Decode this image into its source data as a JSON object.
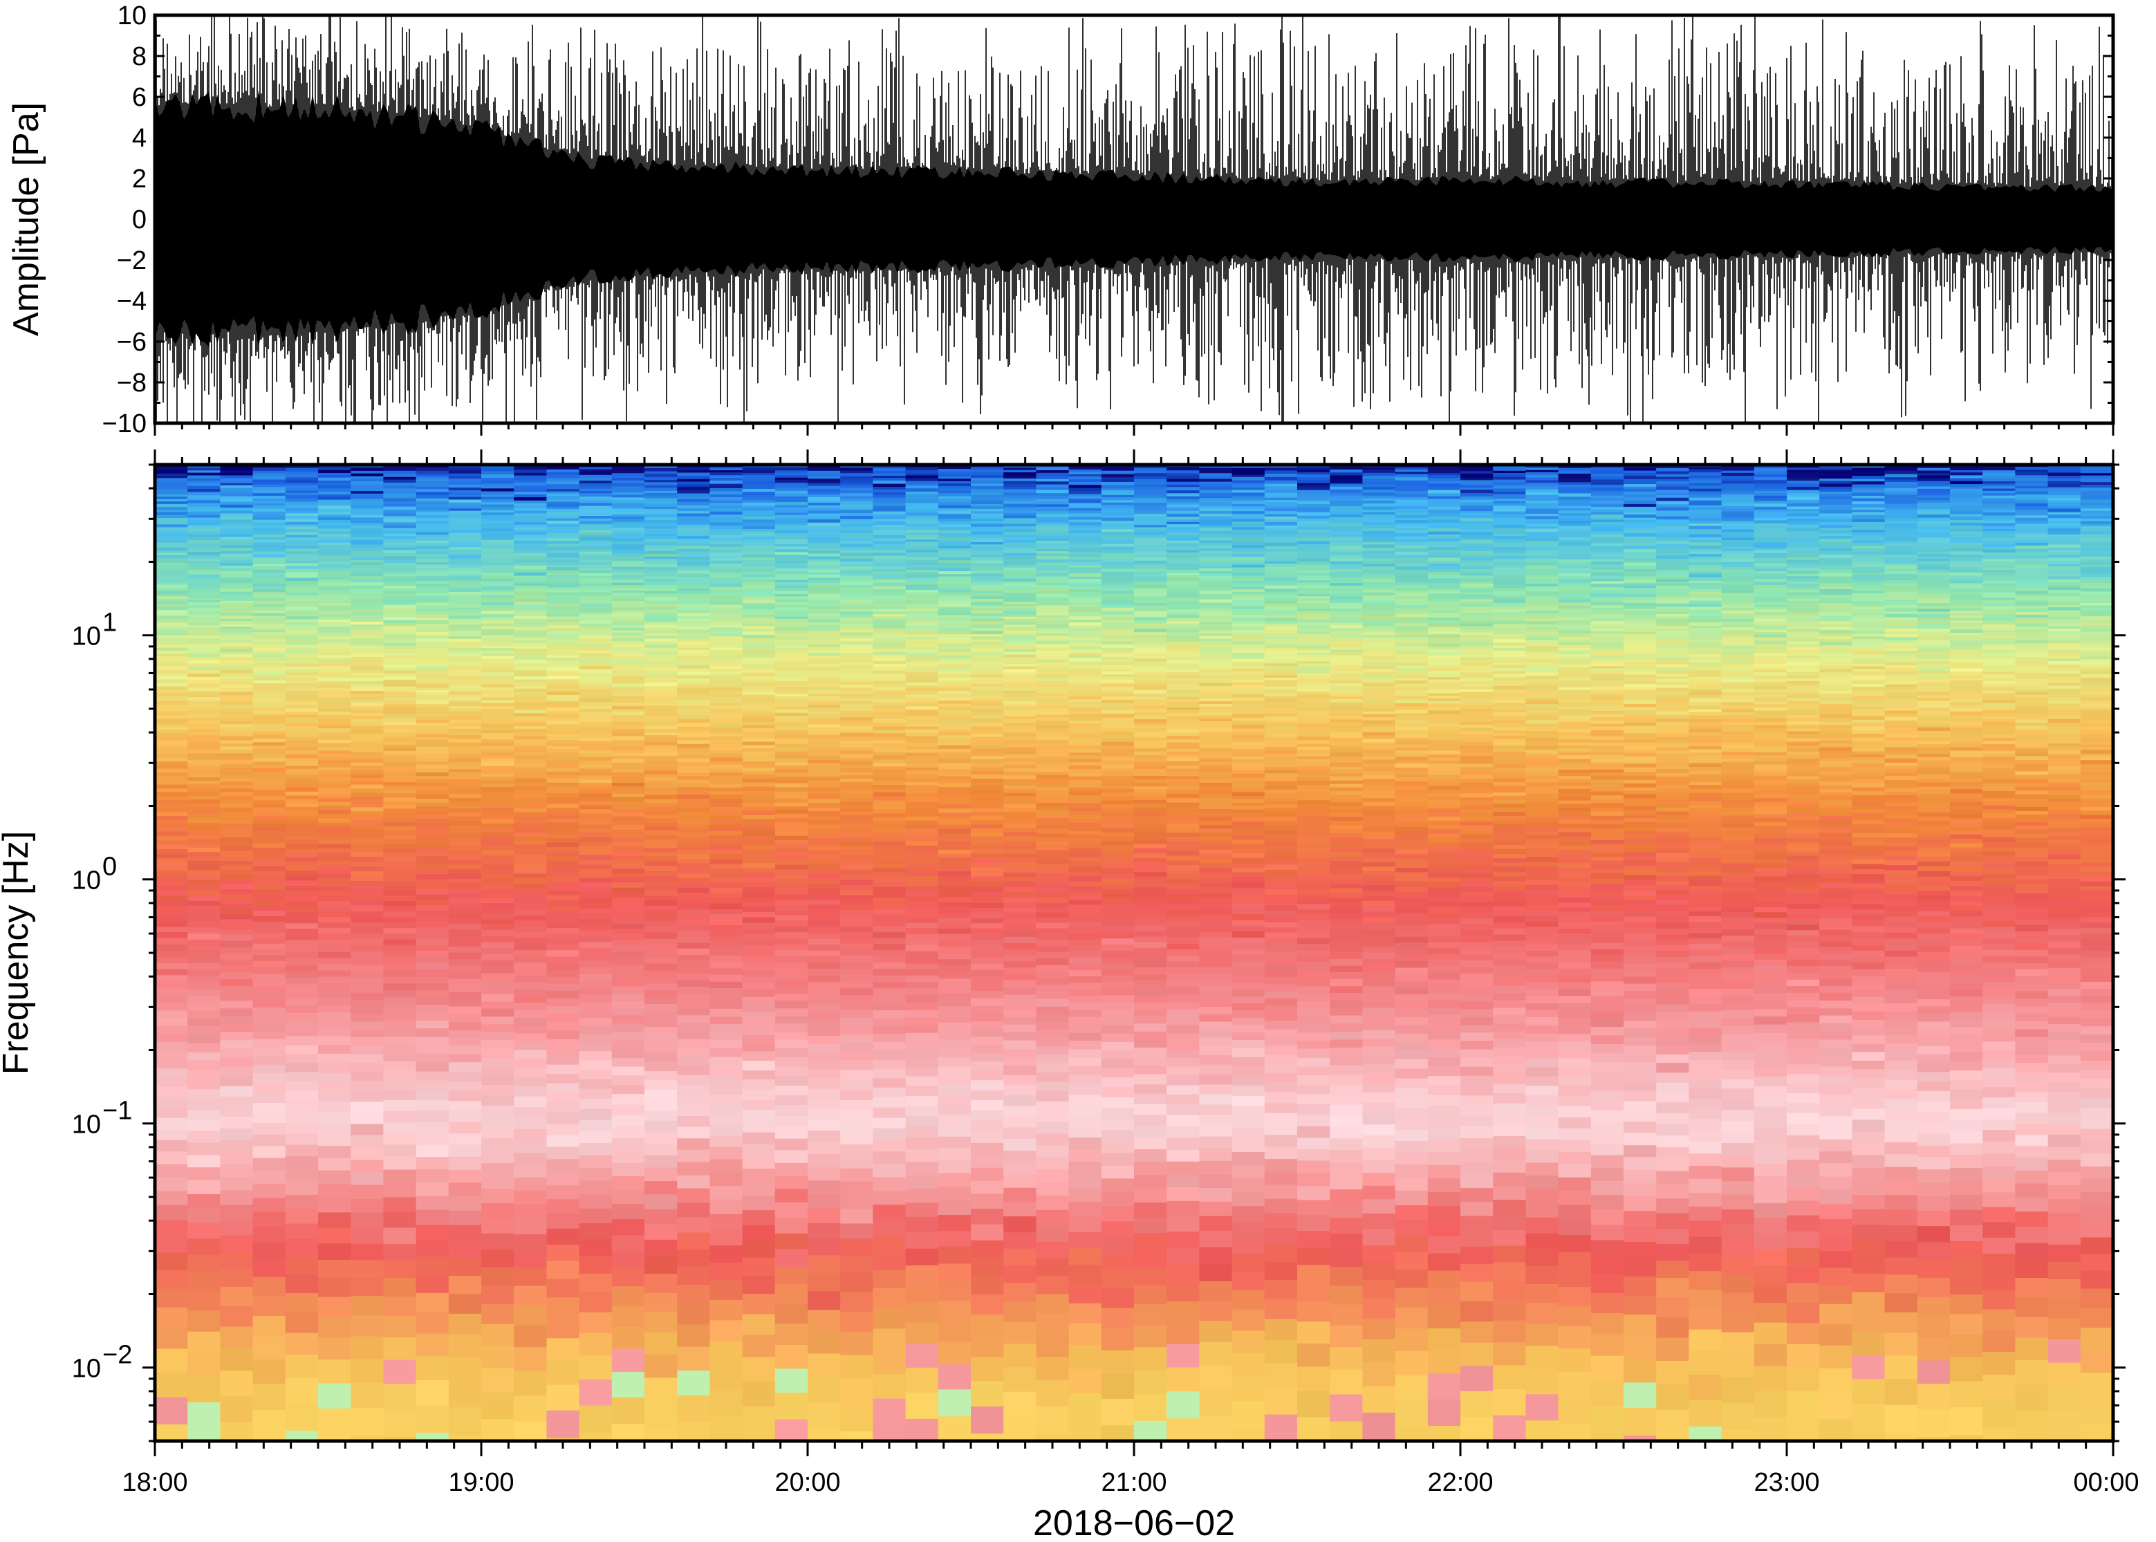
{
  "chart_data": [
    {
      "type": "line",
      "panel": "waveform",
      "ylabel": "Amplitude [Pa]",
      "xlabel": "",
      "ylim": [
        -10,
        10
      ],
      "y_ticks": [
        -10,
        -8,
        -6,
        -4,
        -2,
        0,
        2,
        4,
        6,
        8,
        10
      ],
      "y_tick_labels": [
        "−10",
        "−8",
        "−6",
        "−4",
        "−2",
        "0",
        "2",
        "4",
        "6",
        "8",
        "10"
      ],
      "x_range": [
        "2018-06-02 18:00",
        "2018-06-03 00:00"
      ],
      "grid": false,
      "line_color": "#000000",
      "envelope": {
        "x_hours": [
          18.0,
          18.5,
          19.0,
          19.25,
          19.5,
          20.0,
          20.5,
          21.0,
          21.5,
          22.0,
          22.5,
          23.0,
          23.5,
          24.0
        ],
        "core_upper": [
          5.5,
          5.5,
          4.5,
          3.0,
          2.6,
          2.4,
          2.3,
          2.1,
          1.8,
          1.9,
          1.8,
          1.7,
          1.6,
          1.5
        ],
        "core_lower": [
          -5.5,
          -5.5,
          -4.5,
          -3.0,
          -2.6,
          -2.4,
          -2.3,
          -2.1,
          -1.8,
          -1.9,
          -1.8,
          -1.7,
          -1.6,
          -1.5
        ],
        "peak_upper": [
          10,
          10,
          9.0,
          8.0,
          8.5,
          8.5,
          8.0,
          8.0,
          10,
          8.5,
          9.0,
          8.5,
          8.0,
          7.5
        ],
        "peak_lower": [
          -10,
          -10,
          -9.0,
          -8.0,
          -8.5,
          -8.5,
          -8.0,
          -8.0,
          -10,
          -8.5,
          -9.0,
          -8.5,
          -8.0,
          -7.5
        ]
      }
    },
    {
      "type": "heatmap",
      "panel": "spectrogram",
      "ylabel": "Frequency [Hz]",
      "xlabel": "2018−06−02",
      "y_scale": "log",
      "ylim": [
        0.005,
        50
      ],
      "y_ticks": [
        0.01,
        0.1,
        1,
        10
      ],
      "y_tick_labels": [
        {
          "base": "10",
          "exp": "−2"
        },
        {
          "base": "10",
          "exp": "−1"
        },
        {
          "base": "10",
          "exp": "0"
        },
        {
          "base": "10",
          "exp": "1"
        }
      ],
      "x_ticks": [
        "18:00",
        "19:00",
        "20:00",
        "21:00",
        "22:00",
        "23:00",
        "00:00"
      ],
      "x_range": [
        "2018-06-02 18:00",
        "2018-06-03 00:00"
      ],
      "colormap_stops": [
        "#08087a",
        "#1a5fe0",
        "#42b8f0",
        "#8ee6b0",
        "#e8ee8a",
        "#f7c25a",
        "#f28a3a",
        "#ef5a58",
        "#f48c90",
        "#fbd8dc",
        "#c0f0b0"
      ],
      "typical_color_by_frequency": [
        {
          "freq_hz": 50,
          "color": "#08087a"
        },
        {
          "freq_hz": 45,
          "color": "#1a5fe0"
        },
        {
          "freq_hz": 30,
          "color": "#42b8f0"
        },
        {
          "freq_hz": 15,
          "color": "#8ee6b0"
        },
        {
          "freq_hz": 8,
          "color": "#e8ee8a"
        },
        {
          "freq_hz": 4,
          "color": "#f7c25a"
        },
        {
          "freq_hz": 2,
          "color": "#f28a3a"
        },
        {
          "freq_hz": 0.8,
          "color": "#ef5a58"
        },
        {
          "freq_hz": 0.3,
          "color": "#f48c90"
        },
        {
          "freq_hz": 0.1,
          "color": "#fbd8dc"
        },
        {
          "freq_hz": 0.03,
          "color": "#ef5a58"
        },
        {
          "freq_hz": 0.01,
          "color": "#f7c25a"
        },
        {
          "freq_hz": 0.006,
          "color": "#f7d060"
        }
      ]
    }
  ]
}
